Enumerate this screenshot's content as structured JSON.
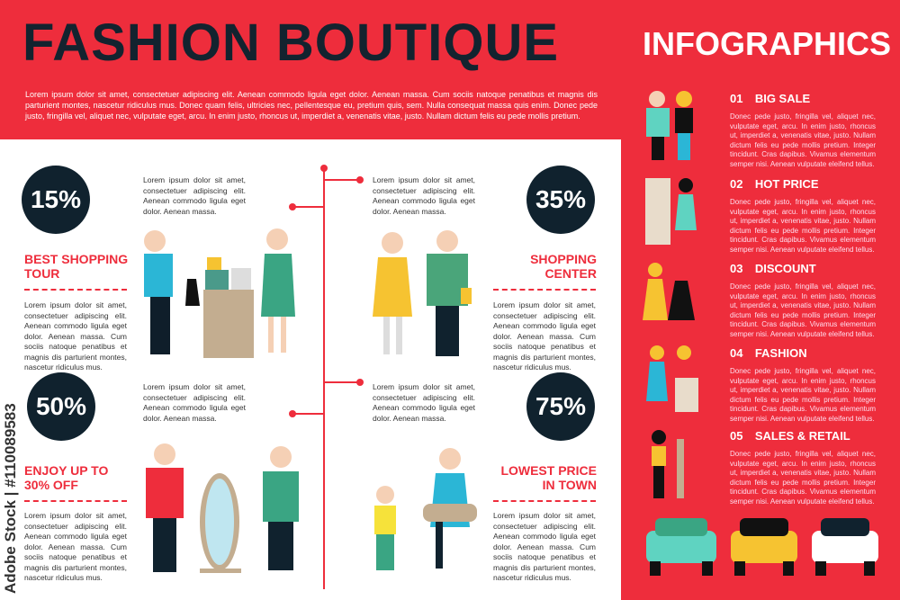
{
  "header": {
    "title": "FASHION BOUTIQUE",
    "subtitle": "INFOGRAPHICS",
    "intro": "Lorem ipsum dolor sit amet, consectetuer adipiscing elit. Aenean commodo ligula eget dolor. Aenean massa. Cum sociis natoque penatibus et magnis dis parturient montes, nascetur ridiculus mus. Donec quam felis, ultricies nec, pellentesque eu, pretium quis, sem. Nulla consequat massa quis enim. Donec pede justo, fringilla vel, aliquet nec, vulputate eget, arcu. In enim justo, rhoncus ut, imperdiet a, venenatis vitae, justo. Nullam dictum felis eu pede mollis pretium."
  },
  "blocks": [
    {
      "percent": "15%",
      "heading": "BEST SHOPPING TOUR",
      "short": "Lorem ipsum dolor sit amet, consectetuer adipiscing elit. Aenean commodo ligula eget dolor. Aenean massa.",
      "long": "Lorem ipsum dolor sit amet, consectetuer adipiscing elit. Aenean commodo ligula eget dolor. Aenean massa. Cum sociis natoque penatibus et magnis dis parturient montes, nascetur ridiculus mus."
    },
    {
      "percent": "35%",
      "heading": "SHOPPING CENTER",
      "short": "Lorem ipsum dolor sit amet, consectetuer adipiscing elit. Aenean commodo ligula eget dolor. Aenean massa.",
      "long": "Lorem ipsum dolor sit amet, consectetuer adipiscing elit. Aenean commodo ligula eget dolor. Aenean massa. Cum sociis natoque penatibus et magnis dis parturient montes, nascetur ridiculus mus."
    },
    {
      "percent": "50%",
      "heading": "ENJOY UP TO 30% OFF",
      "short": "Lorem ipsum dolor sit amet, consectetuer adipiscing elit. Aenean commodo ligula eget dolor. Aenean massa.",
      "long": "Lorem ipsum dolor sit amet, consectetuer adipiscing elit. Aenean commodo ligula eget dolor. Aenean massa. Cum sociis natoque penatibus et magnis dis parturient montes, nascetur ridiculus mus."
    },
    {
      "percent": "75%",
      "heading": "LOWEST PRICE IN TOWN",
      "short": "Lorem ipsum dolor sit amet, consectetuer adipiscing elit. Aenean commodo ligula eget dolor. Aenean massa.",
      "long": "Lorem ipsum dolor sit amet, consectetuer adipiscing elit. Aenean commodo ligula eget dolor. Aenean massa. Cum sociis natoque penatibus et magnis dis parturient montes, nascetur ridiculus mus."
    }
  ],
  "items": [
    {
      "num": "01",
      "title": "BIG SALE"
    },
    {
      "num": "02",
      "title": "HOT PRICE"
    },
    {
      "num": "03",
      "title": "DISCOUNT"
    },
    {
      "num": "04",
      "title": "FASHION"
    },
    {
      "num": "05",
      "title": "SALES & RETAIL"
    }
  ],
  "item_text": "Donec pede justo, fringilla vel, aliquet nec, vulputate eget, arcu. In enim justo, rhoncus ut, imperdiet a, venenatis vitae, justo. Nullam dictum felis eu pede mollis pretium. Integer tincidunt. Cras dapibus. Vivamus elementum semper nisi. Aenean vulputate eleifend tellus.",
  "watermark": "Adobe Stock | #110089583",
  "colors": {
    "red": "#ee2d3c",
    "navy": "#10222e",
    "white": "#ffffff"
  }
}
